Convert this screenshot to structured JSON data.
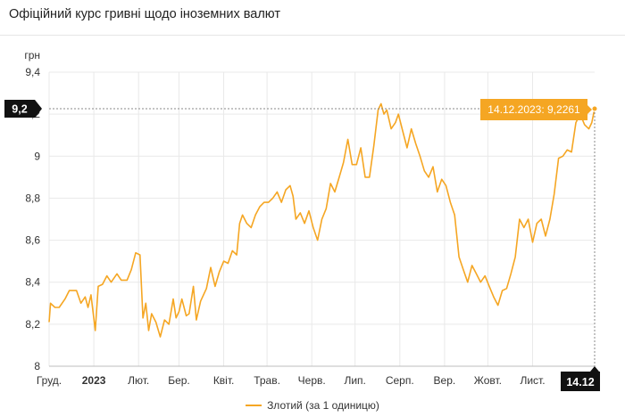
{
  "header": {
    "title": "Офіційний курс гривні щодо іноземних валют"
  },
  "colors": {
    "line": "#f5a623",
    "tooltip_bg": "#f5a623",
    "marker_bg": "#111111",
    "grid": "#e9e9e9"
  },
  "tooltip": {
    "text": "14.12.2023: 9,2261"
  },
  "crosshair": {
    "y_label": "9,2",
    "x_label": "14.12"
  },
  "legend": {
    "label": "Злотий (за 1 одиницю)"
  },
  "chart_data": {
    "type": "line",
    "ylabel": "грн",
    "ylim": [
      8,
      9.4
    ],
    "y_ticks": [
      {
        "value": 8,
        "label": "8"
      },
      {
        "value": 8.2,
        "label": "8,2"
      },
      {
        "value": 8.4,
        "label": "8,4"
      },
      {
        "value": 8.6,
        "label": "8,6"
      },
      {
        "value": 8.8,
        "label": "8,8"
      },
      {
        "value": 9,
        "label": "9"
      },
      {
        "value": 9.2,
        "label": "9,2"
      },
      {
        "value": 9.4,
        "label": "9,4"
      }
    ],
    "xlim": [
      "2022-12-01",
      "2023-12-14"
    ],
    "x_ticks": [
      {
        "date": "2022-12-01",
        "label": "Груд."
      },
      {
        "date": "2023-01-01",
        "label": "2023",
        "bold": true
      },
      {
        "date": "2023-02-01",
        "label": "Лют."
      },
      {
        "date": "2023-03-01",
        "label": "Бер."
      },
      {
        "date": "2023-04-01",
        "label": "Квіт."
      },
      {
        "date": "2023-05-01",
        "label": "Трав."
      },
      {
        "date": "2023-06-01",
        "label": "Черв."
      },
      {
        "date": "2023-07-01",
        "label": "Лип."
      },
      {
        "date": "2023-08-01",
        "label": "Серп."
      },
      {
        "date": "2023-09-01",
        "label": "Вер."
      },
      {
        "date": "2023-10-01",
        "label": "Жовт."
      },
      {
        "date": "2023-11-01",
        "label": "Лист."
      }
    ],
    "grid": true,
    "legend_position": "bottom-center",
    "series": [
      {
        "name": "Злотий (за 1 одиницю)",
        "points": [
          [
            "2022-12-01",
            8.21
          ],
          [
            "2022-12-02",
            8.3
          ],
          [
            "2022-12-05",
            8.28
          ],
          [
            "2022-12-08",
            8.28
          ],
          [
            "2022-12-12",
            8.32
          ],
          [
            "2022-12-15",
            8.36
          ],
          [
            "2022-12-20",
            8.36
          ],
          [
            "2022-12-23",
            8.3
          ],
          [
            "2022-12-26",
            8.33
          ],
          [
            "2022-12-28",
            8.28
          ],
          [
            "2022-12-30",
            8.34
          ],
          [
            "2023-01-02",
            8.17
          ],
          [
            "2023-01-04",
            8.38
          ],
          [
            "2023-01-07",
            8.39
          ],
          [
            "2023-01-10",
            8.43
          ],
          [
            "2023-01-13",
            8.4
          ],
          [
            "2023-01-17",
            8.44
          ],
          [
            "2023-01-20",
            8.41
          ],
          [
            "2023-01-24",
            8.41
          ],
          [
            "2023-01-27",
            8.46
          ],
          [
            "2023-01-30",
            8.54
          ],
          [
            "2023-02-02",
            8.53
          ],
          [
            "2023-02-04",
            8.23
          ],
          [
            "2023-02-06",
            8.3
          ],
          [
            "2023-02-08",
            8.17
          ],
          [
            "2023-02-10",
            8.25
          ],
          [
            "2023-02-13",
            8.21
          ],
          [
            "2023-02-16",
            8.14
          ],
          [
            "2023-02-19",
            8.22
          ],
          [
            "2023-02-22",
            8.2
          ],
          [
            "2023-02-25",
            8.32
          ],
          [
            "2023-02-27",
            8.23
          ],
          [
            "2023-03-01",
            8.26
          ],
          [
            "2023-03-03",
            8.32
          ],
          [
            "2023-03-06",
            8.24
          ],
          [
            "2023-03-08",
            8.25
          ],
          [
            "2023-03-11",
            8.38
          ],
          [
            "2023-03-13",
            8.22
          ],
          [
            "2023-03-16",
            8.31
          ],
          [
            "2023-03-20",
            8.37
          ],
          [
            "2023-03-23",
            8.47
          ],
          [
            "2023-03-26",
            8.38
          ],
          [
            "2023-03-29",
            8.45
          ],
          [
            "2023-04-01",
            8.5
          ],
          [
            "2023-04-04",
            8.49
          ],
          [
            "2023-04-07",
            8.55
          ],
          [
            "2023-04-10",
            8.53
          ],
          [
            "2023-04-12",
            8.68
          ],
          [
            "2023-04-14",
            8.72
          ],
          [
            "2023-04-17",
            8.68
          ],
          [
            "2023-04-20",
            8.66
          ],
          [
            "2023-04-23",
            8.72
          ],
          [
            "2023-04-26",
            8.76
          ],
          [
            "2023-04-29",
            8.78
          ],
          [
            "2023-05-02",
            8.78
          ],
          [
            "2023-05-05",
            8.8
          ],
          [
            "2023-05-08",
            8.83
          ],
          [
            "2023-05-11",
            8.78
          ],
          [
            "2023-05-14",
            8.84
          ],
          [
            "2023-05-17",
            8.86
          ],
          [
            "2023-05-19",
            8.81
          ],
          [
            "2023-05-21",
            8.7
          ],
          [
            "2023-05-24",
            8.73
          ],
          [
            "2023-05-27",
            8.68
          ],
          [
            "2023-05-30",
            8.74
          ],
          [
            "2023-06-02",
            8.66
          ],
          [
            "2023-06-05",
            8.6
          ],
          [
            "2023-06-08",
            8.7
          ],
          [
            "2023-06-11",
            8.75
          ],
          [
            "2023-06-14",
            8.87
          ],
          [
            "2023-06-17",
            8.83
          ],
          [
            "2023-06-20",
            8.9
          ],
          [
            "2023-06-23",
            8.97
          ],
          [
            "2023-06-26",
            9.08
          ],
          [
            "2023-06-29",
            8.96
          ],
          [
            "2023-07-02",
            8.96
          ],
          [
            "2023-07-05",
            9.04
          ],
          [
            "2023-07-08",
            8.9
          ],
          [
            "2023-07-11",
            8.9
          ],
          [
            "2023-07-14",
            9.05
          ],
          [
            "2023-07-17",
            9.22
          ],
          [
            "2023-07-19",
            9.25
          ],
          [
            "2023-07-21",
            9.2
          ],
          [
            "2023-07-23",
            9.22
          ],
          [
            "2023-07-26",
            9.13
          ],
          [
            "2023-07-29",
            9.16
          ],
          [
            "2023-07-31",
            9.2
          ],
          [
            "2023-08-03",
            9.12
          ],
          [
            "2023-08-06",
            9.04
          ],
          [
            "2023-08-09",
            9.13
          ],
          [
            "2023-08-12",
            9.06
          ],
          [
            "2023-08-15",
            9.0
          ],
          [
            "2023-08-18",
            8.93
          ],
          [
            "2023-08-21",
            8.9
          ],
          [
            "2023-08-24",
            8.95
          ],
          [
            "2023-08-27",
            8.83
          ],
          [
            "2023-08-30",
            8.89
          ],
          [
            "2023-09-02",
            8.86
          ],
          [
            "2023-09-05",
            8.78
          ],
          [
            "2023-09-08",
            8.72
          ],
          [
            "2023-09-11",
            8.52
          ],
          [
            "2023-09-14",
            8.46
          ],
          [
            "2023-09-17",
            8.4
          ],
          [
            "2023-09-20",
            8.48
          ],
          [
            "2023-09-23",
            8.44
          ],
          [
            "2023-09-26",
            8.4
          ],
          [
            "2023-09-29",
            8.43
          ],
          [
            "2023-10-02",
            8.38
          ],
          [
            "2023-10-05",
            8.33
          ],
          [
            "2023-10-08",
            8.29
          ],
          [
            "2023-10-11",
            8.36
          ],
          [
            "2023-10-14",
            8.37
          ],
          [
            "2023-10-17",
            8.44
          ],
          [
            "2023-10-20",
            8.52
          ],
          [
            "2023-10-23",
            8.7
          ],
          [
            "2023-10-26",
            8.66
          ],
          [
            "2023-10-29",
            8.7
          ],
          [
            "2023-11-01",
            8.59
          ],
          [
            "2023-11-04",
            8.68
          ],
          [
            "2023-11-07",
            8.7
          ],
          [
            "2023-11-10",
            8.62
          ],
          [
            "2023-11-13",
            8.7
          ],
          [
            "2023-11-16",
            8.82
          ],
          [
            "2023-11-19",
            8.99
          ],
          [
            "2023-11-22",
            9.0
          ],
          [
            "2023-11-25",
            9.03
          ],
          [
            "2023-11-28",
            9.02
          ],
          [
            "2023-12-01",
            9.16
          ],
          [
            "2023-12-04",
            9.2
          ],
          [
            "2023-12-07",
            9.15
          ],
          [
            "2023-12-10",
            9.13
          ],
          [
            "2023-12-12",
            9.16
          ],
          [
            "2023-12-14",
            9.2261
          ]
        ]
      }
    ]
  }
}
